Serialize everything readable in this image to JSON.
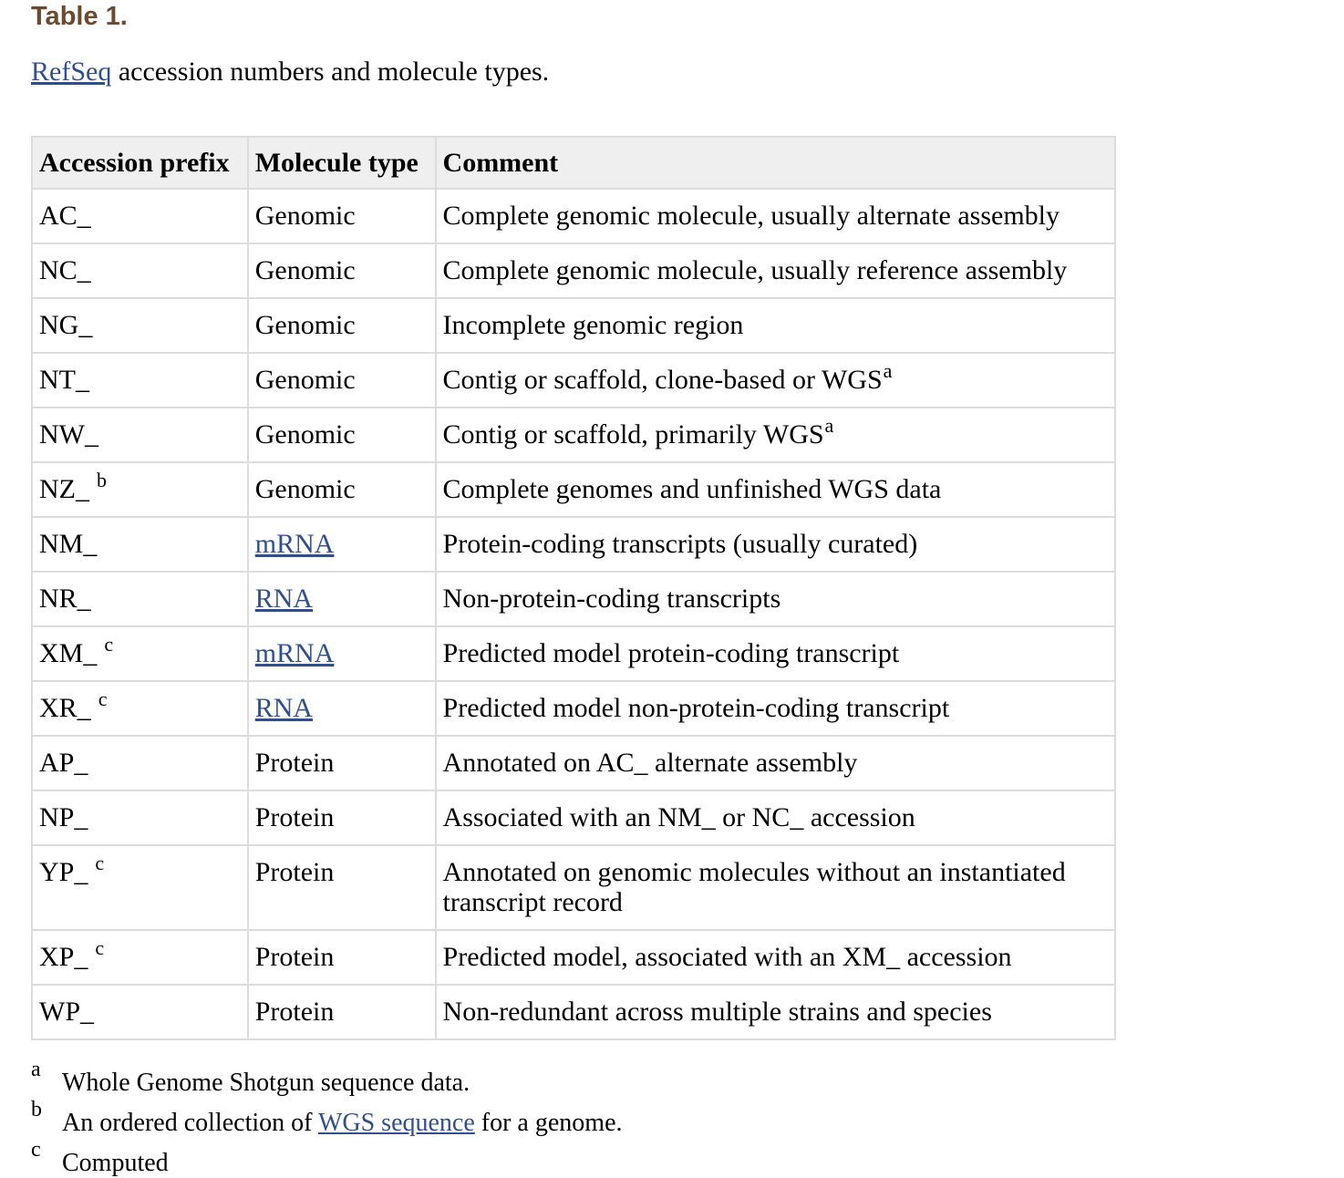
{
  "title": "Table 1.",
  "caption": {
    "link": "RefSeq",
    "text": " accession numbers and molecule types."
  },
  "table": {
    "headers": [
      "Accession prefix",
      "Molecule type",
      "Comment"
    ],
    "rows": [
      {
        "prefix": "AC_",
        "prefix_sup": "",
        "type": "Genomic",
        "type_link": false,
        "comment": "Complete genomic molecule, usually alternate assembly",
        "comment_sup": ""
      },
      {
        "prefix": "NC_",
        "prefix_sup": "",
        "type": "Genomic",
        "type_link": false,
        "comment": "Complete genomic molecule, usually reference assembly",
        "comment_sup": ""
      },
      {
        "prefix": "NG_",
        "prefix_sup": "",
        "type": "Genomic",
        "type_link": false,
        "comment": "Incomplete genomic region",
        "comment_sup": ""
      },
      {
        "prefix": "NT_",
        "prefix_sup": "",
        "type": "Genomic",
        "type_link": false,
        "comment": "Contig or scaffold, clone-based or WGS",
        "comment_sup": "a"
      },
      {
        "prefix": "NW_",
        "prefix_sup": "",
        "type": "Genomic",
        "type_link": false,
        "comment": "Contig or scaffold, primarily WGS",
        "comment_sup": "a"
      },
      {
        "prefix": "NZ_",
        "prefix_sup": "b",
        "type": "Genomic",
        "type_link": false,
        "comment": "Complete genomes and unfinished WGS data",
        "comment_sup": ""
      },
      {
        "prefix": "NM_",
        "prefix_sup": "",
        "type": "mRNA",
        "type_link": true,
        "comment": "Protein-coding transcripts (usually curated)",
        "comment_sup": ""
      },
      {
        "prefix": "NR_",
        "prefix_sup": "",
        "type": "RNA",
        "type_link": true,
        "comment": "Non-protein-coding transcripts",
        "comment_sup": ""
      },
      {
        "prefix": "XM_",
        "prefix_sup": "c",
        "type": "mRNA",
        "type_link": true,
        "comment": "Predicted model protein-coding transcript",
        "comment_sup": ""
      },
      {
        "prefix": "XR_",
        "prefix_sup": "c",
        "type": "RNA",
        "type_link": true,
        "comment": "Predicted model non-protein-coding transcript",
        "comment_sup": ""
      },
      {
        "prefix": "AP_",
        "prefix_sup": "",
        "type": "Protein",
        "type_link": false,
        "comment": "Annotated on AC_ alternate assembly",
        "comment_sup": ""
      },
      {
        "prefix": "NP_",
        "prefix_sup": "",
        "type": "Protein",
        "type_link": false,
        "comment": "Associated with an NM_ or NC_ accession",
        "comment_sup": ""
      },
      {
        "prefix": "YP_",
        "prefix_sup": "c",
        "type": "Protein",
        "type_link": false,
        "comment": "Annotated on genomic molecules without an instantiated transcript record",
        "comment_sup": ""
      },
      {
        "prefix": "XP_",
        "prefix_sup": "c",
        "type": "Protein",
        "type_link": false,
        "comment": "Predicted model, associated with an XM_ accession",
        "comment_sup": ""
      },
      {
        "prefix": "WP_",
        "prefix_sup": "",
        "type": "Protein",
        "type_link": false,
        "comment": "Non-redundant across multiple strains and species",
        "comment_sup": ""
      }
    ]
  },
  "footnotes": [
    {
      "label": "a",
      "text_before": "Whole Genome Shotgun sequence data.",
      "link": "",
      "text_after": ""
    },
    {
      "label": "b",
      "text_before": "An ordered collection of ",
      "link": "WGS sequence",
      "text_after": " for a genome."
    },
    {
      "label": "c",
      "text_before": "Computed",
      "link": "",
      "text_after": ""
    }
  ],
  "colors": {
    "title": "#6b4a2e",
    "link": "#2f4f8f",
    "header_bg": "#efefef",
    "border": "#dcdcdc"
  }
}
